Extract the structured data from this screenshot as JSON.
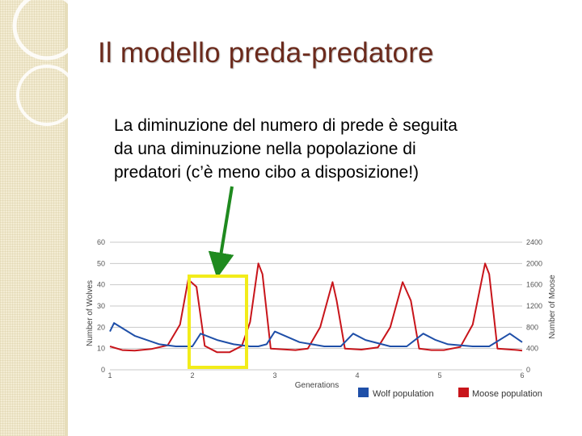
{
  "slide": {
    "title": "Il modello preda-predatore",
    "body_lines": [
      "La diminuzione del numero di prede è seguita",
      "da una diminuzione nella popolazione di",
      "predatori (c’è meno cibo a disposizione!)"
    ]
  },
  "colors": {
    "title": "#6b2a1c",
    "wolf": "#1f4fa8",
    "moose": "#c8151b",
    "highlight": "#f2ec1a",
    "arrow": "#1f8a1f"
  },
  "chart_data": {
    "type": "line",
    "title": "",
    "xlabel": "Generations",
    "ylabel_left": "Number of Wolves",
    "ylabel_right": "Number of Moose",
    "xlim": [
      1,
      6
    ],
    "ylim_left": [
      0,
      60
    ],
    "ylim_right": [
      0,
      2400
    ],
    "x_ticks": [
      "1",
      "2",
      "3",
      "4",
      "5",
      "6"
    ],
    "y_ticks_left": [
      "0",
      "10",
      "20",
      "30",
      "40",
      "50",
      "60"
    ],
    "y_ticks_right": [
      "0",
      "400",
      "800",
      "1200",
      "1600",
      "2000",
      "2400"
    ],
    "grid": true,
    "legend_position": "bottom-right",
    "series": [
      {
        "name": "Wolf population",
        "axis": "left",
        "x": [
          1.0,
          1.05,
          1.3,
          1.6,
          1.8,
          2.0,
          2.1,
          2.1,
          2.3,
          2.5,
          2.7,
          2.8,
          2.9,
          3.0,
          3.3,
          3.6,
          3.8,
          3.95,
          4.1,
          4.4,
          4.6,
          4.8,
          4.95,
          5.1,
          5.4,
          5.6,
          5.85,
          6.0
        ],
        "y": [
          18,
          22,
          16,
          12,
          11,
          11,
          17,
          17,
          14,
          12,
          11,
          11,
          12,
          18,
          13,
          11,
          11,
          17,
          14,
          11,
          11,
          17,
          14,
          12,
          11,
          11,
          17,
          13
        ],
        "x_note": "approximate"
      },
      {
        "name": "Moose population",
        "axis": "right",
        "x": [
          1.0,
          1.15,
          1.3,
          1.5,
          1.7,
          1.85,
          1.95,
          2.05,
          2.15,
          2.3,
          2.45,
          2.6,
          2.7,
          2.8,
          2.85,
          2.95,
          3.25,
          3.4,
          3.55,
          3.7,
          3.75,
          3.85,
          4.05,
          4.25,
          4.4,
          4.55,
          4.65,
          4.75,
          4.9,
          5.05,
          5.25,
          5.4,
          5.55,
          5.6,
          5.7,
          5.95,
          6.0
        ],
        "y": [
          440,
          370,
          360,
          390,
          460,
          850,
          1700,
          1560,
          450,
          330,
          330,
          450,
          900,
          2000,
          1800,
          400,
          370,
          400,
          800,
          1650,
          1300,
          400,
          380,
          420,
          800,
          1650,
          1300,
          400,
          370,
          370,
          430,
          850,
          2000,
          1800,
          400,
          370,
          360
        ]
      }
    ]
  }
}
